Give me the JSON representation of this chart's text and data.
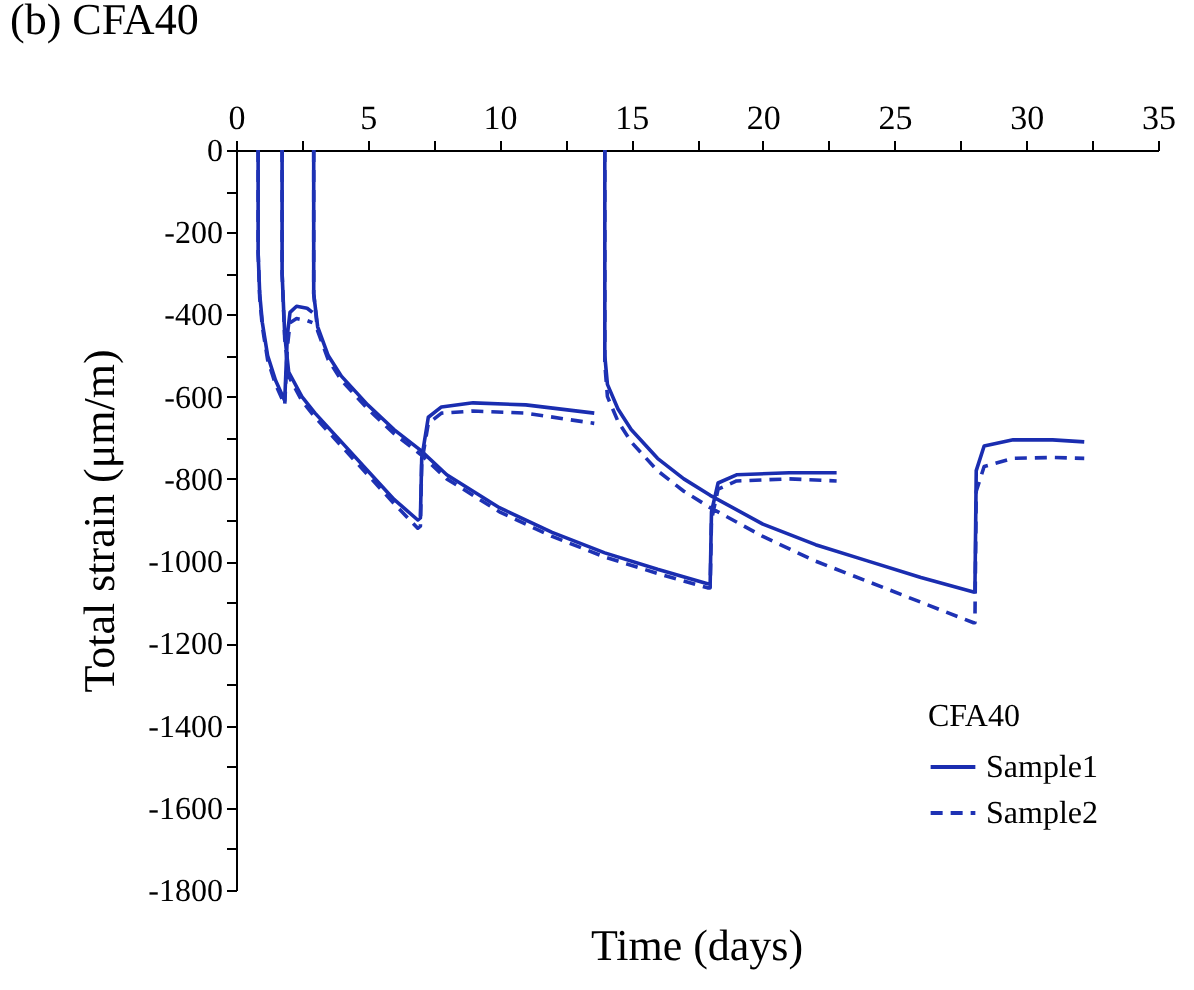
{
  "chart_data": {
    "type": "line",
    "title": "(b) CFA40",
    "xlabel": "Time (days)",
    "ylabel": "Total strain (μm/m)",
    "legend_title": "CFA40",
    "xlim": [
      0,
      35
    ],
    "ylim": [
      -1800,
      0
    ],
    "xticks": [
      0,
      {
        "value": 2.5,
        "label": null
      },
      5,
      {
        "value": 7.5,
        "label": null
      },
      10,
      {
        "value": 12.5,
        "label": null
      },
      15,
      {
        "value": 17.5,
        "label": null
      },
      20,
      {
        "value": 22.5,
        "label": null
      },
      25,
      {
        "value": 27.5,
        "label": null
      },
      30,
      {
        "value": 32.5,
        "label": null
      },
      35
    ],
    "yticks": [
      -1800,
      {
        "value": -1700,
        "label": null
      },
      -1600,
      {
        "value": -1500,
        "label": null
      },
      -1400,
      {
        "value": -1300,
        "label": null
      },
      -1200,
      {
        "value": -1100,
        "label": null
      },
      -1000,
      {
        "value": -900,
        "label": null
      },
      -800,
      {
        "value": -700,
        "label": null
      },
      -600,
      {
        "value": -500,
        "label": null
      },
      -400,
      {
        "value": -300,
        "label": null
      },
      -200,
      {
        "value": -100,
        "label": null
      },
      0
    ],
    "grid": false,
    "legend": "bottom right",
    "marker": "none",
    "series": [
      {
        "name": "Sample1",
        "color": "#1a2db0",
        "line_style": "solid",
        "x": [
          0.84,
          0.84,
          0.9,
          1.0,
          1.2,
          1.5,
          1.85,
          1.95,
          2.05,
          2.3,
          2.7,
          2.9,
          null,
          1.75,
          1.75,
          1.85,
          2.0,
          2.5,
          3,
          4,
          5,
          6,
          6.9,
          7.0,
          7.05,
          7.3,
          7.8,
          9,
          11,
          13.6,
          null,
          2.95,
          2.95,
          3.1,
          3.5,
          4,
          5,
          6,
          7,
          8,
          10,
          12,
          14,
          16,
          17.9,
          18.0,
          18.05,
          18.3,
          19,
          21,
          22.8,
          null,
          14.0,
          14.0,
          14.1,
          14.5,
          15,
          16,
          17,
          18,
          20,
          22,
          24,
          26,
          28.0,
          28.05,
          28.1,
          28.4,
          29.5,
          31,
          32.2
        ],
        "values": [
          0,
          -250,
          -350,
          -420,
          -500,
          -560,
          -610,
          -450,
          -395,
          -380,
          -385,
          -395,
          null,
          0,
          -300,
          -450,
          -540,
          -600,
          -640,
          -710,
          -780,
          -850,
          -900,
          -895,
          -750,
          -650,
          -625,
          -615,
          -620,
          -640,
          null,
          0,
          -350,
          -430,
          -500,
          -550,
          -620,
          -680,
          -730,
          -790,
          -870,
          -930,
          -980,
          -1020,
          -1055,
          -1055,
          -880,
          -810,
          -790,
          -785,
          -785,
          null,
          0,
          -500,
          -570,
          -630,
          -680,
          -750,
          -800,
          -840,
          -910,
          -960,
          -1000,
          -1040,
          -1075,
          -1075,
          -780,
          -720,
          -705,
          -705,
          -710
        ]
      },
      {
        "name": "Sample2",
        "color": "#1e32b4",
        "line_style": "dashed",
        "x": [
          0.84,
          0.84,
          0.9,
          1.0,
          1.2,
          1.5,
          1.85,
          1.95,
          2.05,
          2.3,
          2.7,
          2.9,
          null,
          1.75,
          1.75,
          1.85,
          2.0,
          2.5,
          3,
          4,
          5,
          6,
          6.9,
          7.0,
          7.05,
          7.3,
          7.8,
          9,
          11,
          13.6,
          null,
          2.95,
          2.95,
          3.1,
          3.5,
          4,
          5,
          6,
          7,
          8,
          10,
          12,
          14,
          16,
          17.9,
          18.0,
          18.05,
          18.3,
          19,
          21,
          22.8,
          null,
          14.0,
          14.0,
          14.1,
          14.5,
          15,
          16,
          17,
          18,
          20,
          22,
          24,
          26,
          28.0,
          28.05,
          28.1,
          28.4,
          29.5,
          31,
          32.2
        ],
        "values": [
          0,
          -250,
          -360,
          -430,
          -510,
          -570,
          -620,
          -480,
          -420,
          -410,
          -415,
          -420,
          null,
          0,
          -300,
          -460,
          -550,
          -610,
          -650,
          -720,
          -790,
          -860,
          -920,
          -915,
          -760,
          -665,
          -640,
          -635,
          -640,
          -665,
          null,
          0,
          -350,
          -440,
          -510,
          -560,
          -630,
          -690,
          -740,
          -800,
          -880,
          -940,
          -990,
          -1030,
          -1065,
          -1065,
          -900,
          -825,
          -805,
          -800,
          -805,
          null,
          0,
          -520,
          -600,
          -660,
          -710,
          -780,
          -830,
          -870,
          -940,
          -1000,
          -1050,
          -1100,
          -1150,
          -1150,
          -830,
          -770,
          -750,
          -748,
          -750
        ]
      }
    ]
  }
}
